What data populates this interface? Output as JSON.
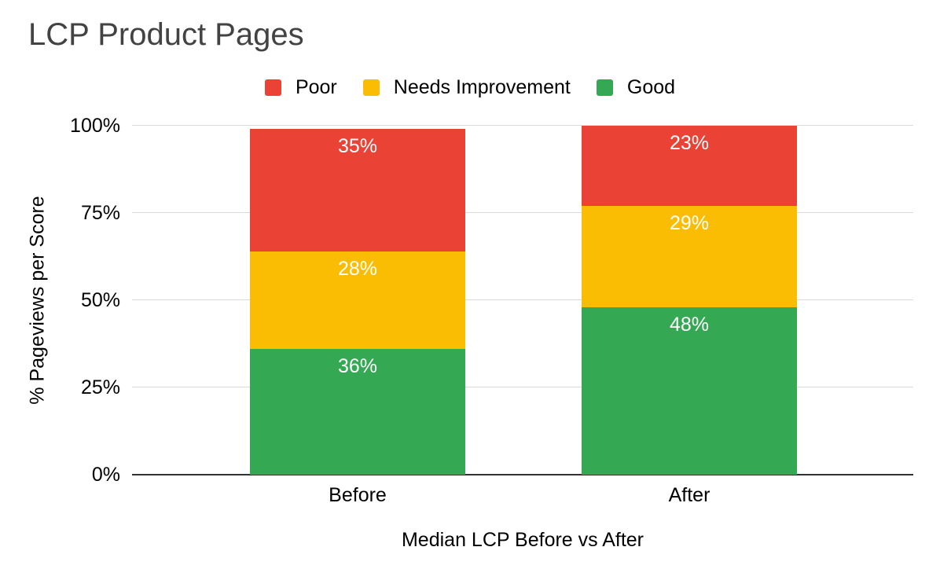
{
  "title": "LCP Product Pages",
  "legend": [
    {
      "label": "Poor",
      "color": "#EA4335"
    },
    {
      "label": "Needs Improvement",
      "color": "#FBBC04"
    },
    {
      "label": "Good",
      "color": "#34A853"
    }
  ],
  "chart_data": {
    "type": "bar",
    "subtype": "stacked-100-percent-vertical",
    "title": "LCP Product Pages",
    "categories": [
      "Before",
      "After"
    ],
    "series": [
      {
        "name": "Good",
        "color": "#34A853",
        "values": [
          36,
          48
        ],
        "labels": [
          "36%",
          "48%"
        ]
      },
      {
        "name": "Needs Improvement",
        "color": "#FBBC04",
        "values": [
          28,
          29
        ],
        "labels": [
          "28%",
          "29%"
        ]
      },
      {
        "name": "Poor",
        "color": "#EA4335",
        "values": [
          35,
          23
        ],
        "labels": [
          "35%",
          "23%"
        ]
      }
    ],
    "stack_order_bottom_to_top": [
      "Good",
      "Needs Improvement",
      "Poor"
    ],
    "xlabel": "Median LCP Before vs After",
    "ylabel": "% Pageviews per Score",
    "ylim": [
      0,
      100
    ],
    "y_ticks": [
      {
        "label": "0%",
        "value": 0
      },
      {
        "label": "25%",
        "value": 25
      },
      {
        "label": "50%",
        "value": 50
      },
      {
        "label": "75%",
        "value": 75
      },
      {
        "label": "100%",
        "value": 100
      }
    ],
    "grid": "horizontal",
    "legend_position": "top",
    "value_labels": "white percent labels at top of each segment",
    "colors": {
      "grid": "#d9d9d9",
      "baseline": "#333333",
      "title_text": "#434343",
      "axis_text": "#000000",
      "background": "#ffffff"
    }
  }
}
